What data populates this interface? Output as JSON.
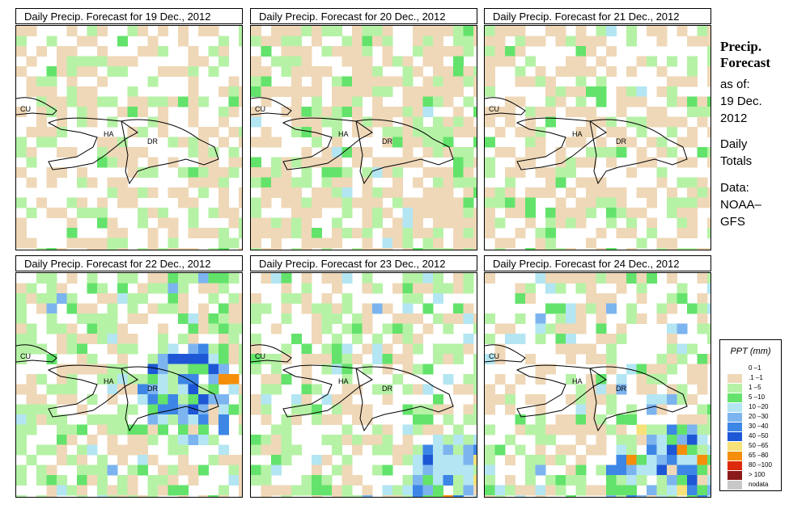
{
  "panels": [
    {
      "title": "Daily Precip. Forecast for  19 Dec., 2012"
    },
    {
      "title": "Daily Precip. Forecast for  20 Dec., 2012"
    },
    {
      "title": "Daily Precip. Forecast for  21 Dec., 2012"
    },
    {
      "title": "Daily Precip. Forecast for  22 Dec., 2012"
    },
    {
      "title": "Daily Precip. Forecast for  23 Dec., 2012"
    },
    {
      "title": "Daily Precip. Forecast for  24 Dec., 2012"
    }
  ],
  "map_labels": {
    "cuba": "CU",
    "haiti": "HA",
    "dominican_republic": "DR"
  },
  "sidebar": {
    "title_line1": "Precip.",
    "title_line2": "Forecast",
    "asof_line1": "as of:",
    "asof_line2": "19 Dec.",
    "asof_line3": "2012",
    "type_line1": "Daily",
    "type_line2": "Totals",
    "source_line1": "Data:",
    "source_line2": "NOAA–",
    "source_line3": "GFS"
  },
  "legend": {
    "title": "PPT (mm)",
    "items": [
      {
        "label": "0 –1",
        "color": "#ffffff"
      },
      {
        "label": ".1 –1",
        "color": "#efd8b8"
      },
      {
        "label": "1 –5",
        "color": "#b6f2a6"
      },
      {
        "label": "5 –10",
        "color": "#63e36b"
      },
      {
        "label": "10 –20",
        "color": "#b3e6f2"
      },
      {
        "label": "20 –30",
        "color": "#7cb4ef"
      },
      {
        "label": "30 –40",
        "color": "#3d86e6"
      },
      {
        "label": "40 –50",
        "color": "#1d57d6"
      },
      {
        "label": "50 –65",
        "color": "#f7e27a"
      },
      {
        "label": "65 –80",
        "color": "#f58f0b"
      },
      {
        "label": "80 –100",
        "color": "#dd2a0c"
      },
      {
        "label": "> 100",
        "color": "#8b1a1a"
      },
      {
        "label": "nodata",
        "color": "#c8c8c8"
      }
    ]
  }
}
